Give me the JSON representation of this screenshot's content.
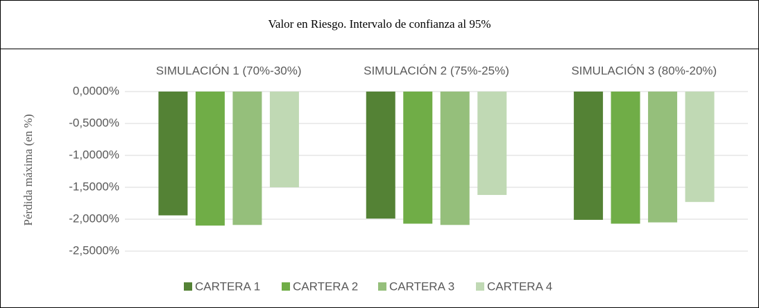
{
  "chart_data": {
    "type": "bar",
    "title": "Valor en Riesgo. Intervalo de confianza al 95%",
    "y_axis_label": "Pérdida máxima (en %)",
    "categories": [
      "SIMULACIÓN 1 (70%-30%)",
      "SIMULACIÓN 2 (75%-25%)",
      "SIMULACIÓN 3 (80%-20%)"
    ],
    "series": [
      {
        "name": "CARTERA 1",
        "color": "#548235",
        "values": [
          -1.94,
          -1.99,
          -2.01
        ]
      },
      {
        "name": "CARTERA 2",
        "color": "#70ad47",
        "values": [
          -2.1,
          -2.07,
          -2.07
        ]
      },
      {
        "name": "CARTERA 3",
        "color": "#95bf7b",
        "values": [
          -2.09,
          -2.09,
          -2.05
        ]
      },
      {
        "name": "CARTERA 4",
        "color": "#c0d9b4",
        "values": [
          -1.5,
          -1.62,
          -1.73
        ]
      }
    ],
    "ylim": [
      -2.5,
      0
    ],
    "yticks": [
      {
        "value": 0,
        "label": "0,0000%"
      },
      {
        "value": -0.5,
        "label": "-0,5000%"
      },
      {
        "value": -1,
        "label": "-1,0000%"
      },
      {
        "value": -1.5,
        "label": "-1,5000%"
      },
      {
        "value": -2,
        "label": "-2,0000%"
      },
      {
        "value": -2.5,
        "label": "-2,5000%"
      }
    ],
    "grid": true,
    "legend": "bottom"
  }
}
